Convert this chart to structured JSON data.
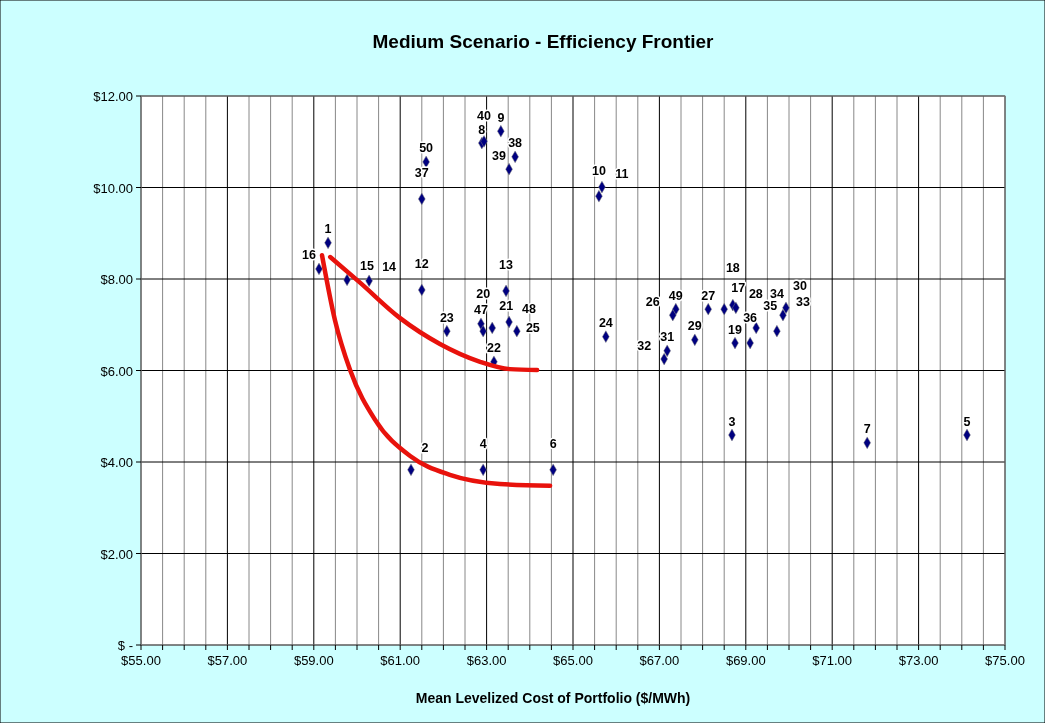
{
  "chart_data": {
    "type": "scatter",
    "title": "Medium Scenario - Efficiency Frontier",
    "xlabel": "Mean Levelized Cost of Portfolio ($/MWh)",
    "xlim": [
      55,
      75
    ],
    "xticks": [
      {
        "value": 55,
        "label": "$55.00"
      },
      {
        "value": 55.5,
        "label": null
      },
      {
        "value": 56,
        "label": null
      },
      {
        "value": 56.5,
        "label": null
      },
      {
        "value": 57,
        "label": "$57.00"
      },
      {
        "value": 57.5,
        "label": null
      },
      {
        "value": 58,
        "label": null
      },
      {
        "value": 58.5,
        "label": null
      },
      {
        "value": 59,
        "label": "$59.00"
      },
      {
        "value": 59.5,
        "label": null
      },
      {
        "value": 60,
        "label": null
      },
      {
        "value": 60.5,
        "label": null
      },
      {
        "value": 61,
        "label": "$61.00"
      },
      {
        "value": 61.5,
        "label": null
      },
      {
        "value": 62,
        "label": null
      },
      {
        "value": 62.5,
        "label": null
      },
      {
        "value": 63,
        "label": "$63.00"
      },
      {
        "value": 63.5,
        "label": null
      },
      {
        "value": 64,
        "label": null
      },
      {
        "value": 64.5,
        "label": null
      },
      {
        "value": 65,
        "label": "$65.00"
      },
      {
        "value": 65.5,
        "label": null
      },
      {
        "value": 66,
        "label": null
      },
      {
        "value": 66.5,
        "label": null
      },
      {
        "value": 67,
        "label": "$67.00"
      },
      {
        "value": 67.5,
        "label": null
      },
      {
        "value": 68,
        "label": null
      },
      {
        "value": 68.5,
        "label": null
      },
      {
        "value": 69,
        "label": "$69.00"
      },
      {
        "value": 69.5,
        "label": null
      },
      {
        "value": 70,
        "label": null
      },
      {
        "value": 70.5,
        "label": null
      },
      {
        "value": 71,
        "label": "$71.00"
      },
      {
        "value": 71.5,
        "label": null
      },
      {
        "value": 72,
        "label": null
      },
      {
        "value": 72.5,
        "label": null
      },
      {
        "value": 73,
        "label": "$73.00"
      },
      {
        "value": 73.5,
        "label": null
      },
      {
        "value": 74,
        "label": null
      },
      {
        "value": 74.5,
        "label": null
      },
      {
        "value": 75,
        "label": "$75.00"
      }
    ],
    "ylim": [
      0,
      12
    ],
    "yticks": [
      {
        "value": 0,
        "label": "$ -"
      },
      {
        "value": 2,
        "label": "$2.00"
      },
      {
        "value": 4,
        "label": "$4.00"
      },
      {
        "value": 6,
        "label": "$6.00"
      },
      {
        "value": 8,
        "label": "$8.00"
      },
      {
        "value": 10,
        "label": "$10.00"
      },
      {
        "value": 12,
        "label": "$12.00"
      }
    ],
    "grid": true,
    "marker": "diamond",
    "series": [
      {
        "color": "#000080",
        "x": [
          59.33,
          59.12,
          59.77,
          60.28,
          61.6,
          61.5,
          61.5,
          62.08,
          62.87,
          62.92,
          63.13,
          63.17,
          63.45,
          63.52,
          63.7,
          62.89,
          62.94,
          63.33,
          63.66,
          63.52,
          65.6,
          65.67,
          65.76,
          61.25,
          62.92,
          64.54,
          68.68,
          71.81,
          74.12,
          67.38,
          67.31,
          67.18,
          67.11,
          67.82,
          68.13,
          68.5,
          68.7,
          68.77,
          68.75,
          69.1,
          69.24,
          69.72,
          69.86,
          69.93
        ],
        "values": [
          8.79,
          8.22,
          7.98,
          7.96,
          10.56,
          9.75,
          7.76,
          6.86,
          7.02,
          6.86,
          6.93,
          6.19,
          7.74,
          7.06,
          6.86,
          10.97,
          11.01,
          11.23,
          10.67,
          10.4,
          9.81,
          10.01,
          6.74,
          3.83,
          3.83,
          3.83,
          4.59,
          4.42,
          4.59,
          7.34,
          7.21,
          6.43,
          6.25,
          6.67,
          7.34,
          7.34,
          7.43,
          7.37,
          6.6,
          6.6,
          6.93,
          6.86,
          7.21,
          7.37
        ]
      },
      {
        "type": "line",
        "color": "#e8120c",
        "marker": "none",
        "x": [
          59.38,
          60.07,
          60.99,
          61.92,
          62.85,
          63.54,
          64.17
        ],
        "values": [
          8.48,
          7.92,
          7.15,
          6.58,
          6.19,
          6.03,
          6.01
        ]
      },
      {
        "type": "line",
        "color": "#e8120c",
        "marker": "none",
        "x": [
          59.19,
          59.49,
          59.84,
          60.42,
          61.23,
          62.15,
          63.31,
          64.47
        ],
        "values": [
          8.52,
          7.1,
          6.01,
          4.92,
          4.13,
          3.72,
          3.52,
          3.48
        ]
      }
    ],
    "annotations": [
      {
        "text": "1",
        "x": 59.33,
        "y": 8.79
      },
      {
        "text": "16",
        "x": 59.12,
        "y": 8.22
      },
      {
        "text": "15",
        "x": 59.77,
        "y": 7.98
      },
      {
        "text": "14",
        "x": 60.28,
        "y": 7.96
      },
      {
        "text": "50",
        "x": 61.6,
        "y": 10.56
      },
      {
        "text": "37",
        "x": 61.5,
        "y": 9.75
      },
      {
        "text": "12",
        "x": 61.5,
        "y": 7.76
      },
      {
        "text": "23",
        "x": 62.08,
        "y": 6.86
      },
      {
        "text": "47",
        "x": 62.87,
        "y": 7.02
      },
      {
        "text": "20",
        "x": 62.92,
        "y": 6.86
      },
      {
        "text": "21",
        "x": 63.13,
        "y": 6.93
      },
      {
        "text": "22",
        "x": 63.17,
        "y": 6.19
      },
      {
        "text": "13",
        "x": 63.45,
        "y": 7.74
      },
      {
        "text": "48",
        "x": 63.52,
        "y": 7.06
      },
      {
        "text": "25",
        "x": 63.7,
        "y": 6.86
      },
      {
        "text": "8",
        "x": 62.89,
        "y": 10.97
      },
      {
        "text": "40",
        "x": 62.94,
        "y": 11.01
      },
      {
        "text": "9",
        "x": 63.33,
        "y": 11.23
      },
      {
        "text": "38",
        "x": 63.66,
        "y": 10.67
      },
      {
        "text": "39",
        "x": 63.52,
        "y": 10.4
      },
      {
        "text": "10",
        "x": 65.6,
        "y": 9.81
      },
      {
        "text": "11",
        "x": 65.67,
        "y": 10.01
      },
      {
        "text": "24",
        "x": 65.76,
        "y": 6.74
      },
      {
        "text": "2",
        "x": 61.25,
        "y": 3.83
      },
      {
        "text": "4",
        "x": 62.92,
        "y": 3.83
      },
      {
        "text": "6",
        "x": 64.54,
        "y": 3.83
      },
      {
        "text": "3",
        "x": 68.68,
        "y": 4.59
      },
      {
        "text": "7",
        "x": 71.81,
        "y": 4.42
      },
      {
        "text": "5",
        "x": 74.12,
        "y": 4.59
      },
      {
        "text": "49",
        "x": 67.38,
        "y": 7.34
      },
      {
        "text": "26",
        "x": 67.31,
        "y": 7.21
      },
      {
        "text": "31",
        "x": 67.18,
        "y": 6.43
      },
      {
        "text": "32",
        "x": 67.11,
        "y": 6.25
      },
      {
        "text": "29",
        "x": 67.82,
        "y": 6.67
      },
      {
        "text": "27",
        "x": 68.13,
        "y": 7.34
      },
      {
        "text": "17",
        "x": 68.5,
        "y": 7.34
      },
      {
        "text": "18",
        "x": 68.7,
        "y": 7.43
      },
      {
        "text": "28",
        "x": 68.77,
        "y": 7.37
      },
      {
        "text": "19",
        "x": 68.75,
        "y": 6.6
      },
      {
        "text": "36",
        "x": 69.1,
        "y": 6.6
      },
      {
        "text": "35",
        "x": 69.24,
        "y": 6.93
      },
      {
        "text": "34",
        "x": 69.72,
        "y": 6.86
      },
      {
        "text": "33",
        "x": 69.86,
        "y": 7.21
      },
      {
        "text": "30",
        "x": 69.93,
        "y": 7.37
      }
    ]
  }
}
